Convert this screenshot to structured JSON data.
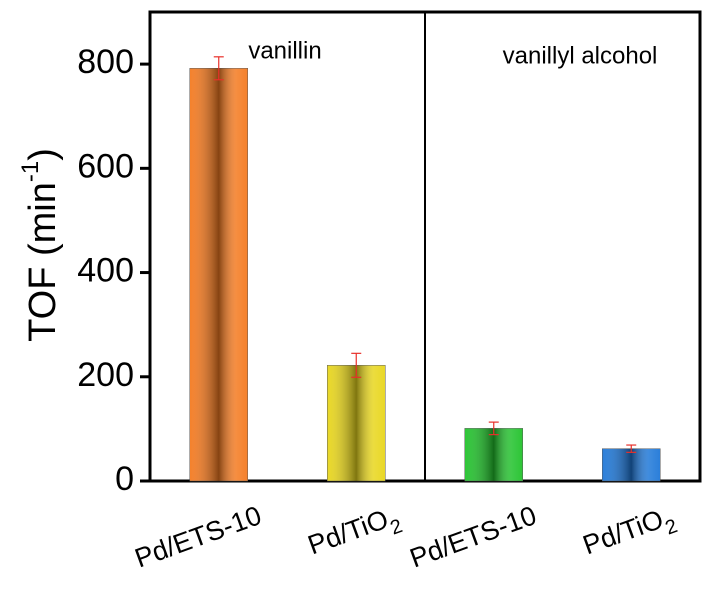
{
  "chart_data": {
    "type": "bar",
    "ylabel": "TOF (min-1)",
    "annotations": [
      "vanillin",
      "vanillyl alcohol"
    ],
    "categories": [
      "Pd/ETS-10",
      "Pd/TiO2",
      "Pd/ETS-10",
      "Pd/TiO2"
    ],
    "values": [
      792,
      222,
      101,
      62
    ],
    "errors": [
      22,
      23,
      12,
      7
    ],
    "colors": [
      "#f47a20",
      "#e8d61c",
      "#22c22c",
      "#1f78d8"
    ],
    "error_color": "#e8302a",
    "ylim": [
      0,
      900
    ],
    "yticks": [
      0,
      200,
      400,
      600,
      800
    ]
  }
}
